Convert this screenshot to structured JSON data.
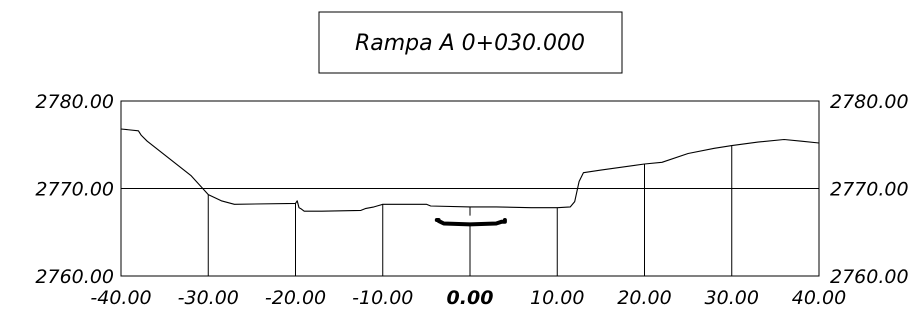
{
  "title": "Rampa A 0+030.000",
  "chart_data": {
    "type": "cross-section",
    "title": "Rampa A 0+030.000",
    "xlim": [
      -40,
      40
    ],
    "ylim": [
      2760,
      2780
    ],
    "x_ticks": [
      "-40.00",
      "-30.00",
      "-20.00",
      "-10.00",
      "0.00",
      "10.00",
      "20.00",
      "30.00",
      "40.00"
    ],
    "x_tick_values": [
      -40,
      -30,
      -20,
      -10,
      0,
      10,
      20,
      30,
      40
    ],
    "y_ticks_left": [
      "2780.00",
      "2770.00",
      "2760.00"
    ],
    "y_ticks_right": [
      "2780.00",
      "2770.00",
      "2760.00"
    ],
    "y_tick_values": [
      2780,
      2770,
      2760
    ],
    "grid": "vertical lines at x ticks from 2760 to the terrain; horizontal line at 2770",
    "series": [
      {
        "role": "terrain",
        "x": [
          -40,
          -38,
          -37.7,
          -37,
          -32,
          -30,
          -28.5,
          -27,
          -20,
          -19.8,
          -19.6,
          -19.4,
          -19,
          -17,
          -12.5,
          -12,
          -11,
          -10,
          -5,
          -4.5,
          0,
          3,
          7,
          10,
          11.5,
          12,
          12.5,
          13,
          15,
          20,
          22,
          25,
          28,
          30,
          33,
          36,
          38,
          40
        ],
        "y": [
          2776.8,
          2776.6,
          2776.1,
          2775.4,
          2771.5,
          2769.3,
          2768.6,
          2768.2,
          2768.3,
          2768.6,
          2767.8,
          2767.7,
          2767.4,
          2767.4,
          2767.5,
          2767.7,
          2767.9,
          2768.2,
          2768.2,
          2768.0,
          2767.9,
          2767.9,
          2767.8,
          2767.8,
          2767.9,
          2768.5,
          2770.8,
          2771.8,
          2772.1,
          2772.8,
          2773.0,
          2774.0,
          2774.6,
          2774.9,
          2775.3,
          2775.6,
          2775.4,
          2775.2
        ]
      },
      {
        "role": "road-section",
        "x": [
          -3.8,
          -3.6,
          -3.6,
          -3,
          0,
          3,
          3.6,
          4,
          4
        ],
        "y": [
          2766.4,
          2766.4,
          2766.3,
          2766.0,
          2765.9,
          2766.0,
          2766.2,
          2766.2,
          2766.4
        ]
      }
    ]
  }
}
